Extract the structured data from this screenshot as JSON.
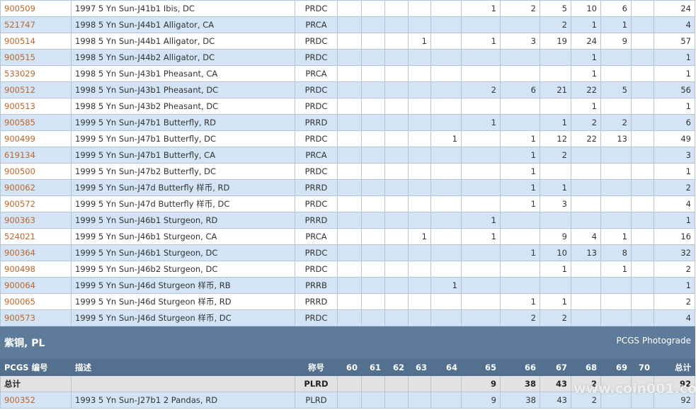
{
  "rows": [
    {
      "id": "900509",
      "description": "1997 5 Yn Sun-J41b1 Ibis, DC",
      "designation": "PRDC",
      "grades": [
        null,
        null,
        null,
        null,
        null,
        1,
        2,
        5,
        10,
        6,
        null
      ],
      "total": 24
    },
    {
      "id": "521747",
      "description": "1998 5 Yn Sun-J44b1 Alligator, CA",
      "designation": "PRCA",
      "grades": [
        null,
        null,
        null,
        null,
        null,
        null,
        null,
        2,
        1,
        1,
        null
      ],
      "total": 4
    },
    {
      "id": "900514",
      "description": "1998 5 Yn Sun-J44b1 Alligator, DC",
      "designation": "PRDC",
      "grades": [
        null,
        null,
        null,
        1,
        null,
        1,
        3,
        19,
        24,
        9,
        null
      ],
      "total": 57
    },
    {
      "id": "900515",
      "description": "1998 5 Yn Sun-J44b2 Alligator, DC",
      "designation": "PRDC",
      "grades": [
        null,
        null,
        null,
        null,
        null,
        null,
        null,
        null,
        1,
        null,
        null
      ],
      "total": 1
    },
    {
      "id": "533029",
      "description": "1998 5 Yn Sun-J43b1 Pheasant, CA",
      "designation": "PRCA",
      "grades": [
        null,
        null,
        null,
        null,
        null,
        null,
        null,
        null,
        1,
        null,
        null
      ],
      "total": 1
    },
    {
      "id": "900512",
      "description": "1998 5 Yn Sun-J43b1 Pheasant, DC",
      "designation": "PRDC",
      "grades": [
        null,
        null,
        null,
        null,
        null,
        2,
        6,
        21,
        22,
        5,
        null
      ],
      "total": 56
    },
    {
      "id": "900513",
      "description": "1998 5 Yn Sun-J43b2 Pheasant, DC",
      "designation": "PRDC",
      "grades": [
        null,
        null,
        null,
        null,
        null,
        null,
        null,
        null,
        1,
        null,
        null
      ],
      "total": 1
    },
    {
      "id": "900585",
      "description": "1999 5 Yn Sun-J47b1 Butterfly, RD",
      "designation": "PRRD",
      "grades": [
        null,
        null,
        null,
        null,
        null,
        1,
        null,
        1,
        2,
        2,
        null
      ],
      "total": 6
    },
    {
      "id": "900499",
      "description": "1999 5 Yn Sun-J47b1 Butterfly, DC",
      "designation": "PRDC",
      "grades": [
        null,
        null,
        null,
        null,
        1,
        null,
        1,
        12,
        22,
        13,
        null
      ],
      "total": 49
    },
    {
      "id": "619134",
      "description": "1999 5 Yn Sun-J47b1 Butterfly, CA",
      "designation": "PRCA",
      "grades": [
        null,
        null,
        null,
        null,
        null,
        null,
        1,
        2,
        null,
        null,
        null
      ],
      "total": 3
    },
    {
      "id": "900500",
      "description": "1999 5 Yn Sun-J47b2 Butterfly, DC",
      "designation": "PRDC",
      "grades": [
        null,
        null,
        null,
        null,
        null,
        null,
        1,
        null,
        null,
        null,
        null
      ],
      "total": 1
    },
    {
      "id": "900062",
      "description": "1999 5 Yn Sun-J47d Butterfly 样币, RD",
      "designation": "PRRD",
      "grades": [
        null,
        null,
        null,
        null,
        null,
        null,
        1,
        1,
        null,
        null,
        null
      ],
      "total": 2
    },
    {
      "id": "900572",
      "description": "1999 5 Yn Sun-J47d Butterfly 样币, DC",
      "designation": "PRDC",
      "grades": [
        null,
        null,
        null,
        null,
        null,
        null,
        1,
        3,
        null,
        null,
        null
      ],
      "total": 4
    },
    {
      "id": "900363",
      "description": "1999 5 Yn Sun-J46b1 Sturgeon, RD",
      "designation": "PRRD",
      "grades": [
        null,
        null,
        null,
        null,
        null,
        1,
        null,
        null,
        null,
        null,
        null
      ],
      "total": 1
    },
    {
      "id": "524021",
      "description": "1999 5 Yn Sun-J46b1 Sturgeon, CA",
      "designation": "PRCA",
      "grades": [
        null,
        null,
        null,
        1,
        null,
        1,
        null,
        9,
        4,
        1,
        null
      ],
      "total": 16
    },
    {
      "id": "900364",
      "description": "1999 5 Yn Sun-J46b1 Sturgeon, DC",
      "designation": "PRDC",
      "grades": [
        null,
        null,
        null,
        null,
        null,
        null,
        1,
        10,
        13,
        8,
        null
      ],
      "total": 32
    },
    {
      "id": "900498",
      "description": "1999 5 Yn Sun-J46b2 Sturgeon, DC",
      "designation": "PRDC",
      "grades": [
        null,
        null,
        null,
        null,
        null,
        null,
        null,
        1,
        null,
        1,
        null
      ],
      "total": 2
    },
    {
      "id": "900064",
      "description": "1999 5 Yn Sun-J46d Sturgeon 样币, RB",
      "designation": "PRRB",
      "grades": [
        null,
        null,
        null,
        null,
        1,
        null,
        null,
        null,
        null,
        null,
        null
      ],
      "total": 1
    },
    {
      "id": "900065",
      "description": "1999 5 Yn Sun-J46d Sturgeon 样币, RD",
      "designation": "PRRD",
      "grades": [
        null,
        null,
        null,
        null,
        null,
        null,
        1,
        1,
        null,
        null,
        null
      ],
      "total": 2
    },
    {
      "id": "900573",
      "description": "1999 5 Yn Sun-J46d Sturgeon 样币, DC",
      "designation": "PRDC",
      "grades": [
        null,
        null,
        null,
        null,
        null,
        null,
        2,
        2,
        null,
        null,
        null
      ],
      "total": 4
    }
  ],
  "section": {
    "title": "紫铜, PL",
    "link": "PCGS Photograde",
    "header": {
      "id": "PCGS 编号",
      "description": "描述",
      "designation": "称号",
      "grades": [
        60,
        61,
        62,
        63,
        64,
        65,
        66,
        67,
        68,
        69,
        70
      ],
      "total": "总计"
    },
    "summary": {
      "label": "总计",
      "designation": "PLRD",
      "grades": [
        null,
        null,
        null,
        null,
        null,
        9,
        38,
        43,
        2,
        null,
        null
      ],
      "total": 92
    },
    "rows": [
      {
        "id": "900352",
        "description": "1993 5 Yn Sun-J27b1 2 Pandas, RD",
        "designation": "PLRD",
        "grades": [
          null,
          null,
          null,
          null,
          null,
          9,
          38,
          43,
          2,
          null,
          null
        ],
        "total": 92
      }
    ]
  },
  "watermark": "www.coin001.com"
}
